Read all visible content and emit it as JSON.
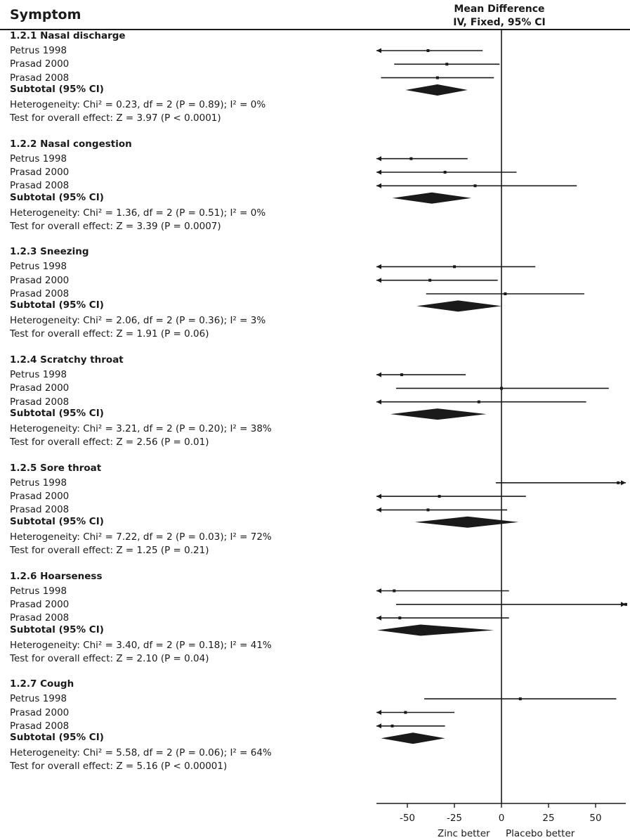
{
  "header": {
    "column_title": "Symptom",
    "md_line1": "Mean Difference",
    "md_line2": "IV, Fixed, 95% CI"
  },
  "chart_data": {
    "type": "forest",
    "effect_measure": "Mean Difference",
    "method": "IV, Fixed, 95% CI",
    "x_axis": {
      "range": [
        -66,
        66
      ],
      "ticks": [
        -50,
        -25,
        0,
        25,
        50
      ],
      "tick_labels": [
        "-50",
        "-25",
        "0",
        "25",
        "50"
      ]
    },
    "favours_left": "Zinc better",
    "favours_right": "Placebo better",
    "groups": [
      {
        "title": "1.2.1 Nasal discharge",
        "studies": [
          {
            "name": "Petrus 1998",
            "md": -39,
            "lo": -100,
            "hi": -10
          },
          {
            "name": "Prasad 2000",
            "md": -29,
            "lo": -57,
            "hi": -1
          },
          {
            "name": "Prasad 2008",
            "md": -34,
            "lo": -64,
            "hi": -4
          }
        ],
        "subtotal_label": "Subtotal (95% CI)",
        "subtotal": {
          "md": -34,
          "lo": -51,
          "hi": -18
        },
        "heterogeneity": "Heterogeneity: Chi² = 0.23, df = 2 (P = 0.89); I² = 0%",
        "overall": "Test for overall effect: Z = 3.97 (P < 0.0001)"
      },
      {
        "title": "1.2.2 Nasal congestion",
        "studies": [
          {
            "name": "Petrus 1998",
            "md": -48,
            "lo": -100,
            "hi": -18
          },
          {
            "name": "Prasad 2000",
            "md": -30,
            "lo": -100,
            "hi": 8
          },
          {
            "name": "Prasad 2008",
            "md": -14,
            "lo": -100,
            "hi": 40
          }
        ],
        "subtotal_label": "Subtotal (95% CI)",
        "subtotal": {
          "md": -37,
          "lo": -58,
          "hi": -16
        },
        "heterogeneity": "Heterogeneity: Chi² = 1.36, df = 2 (P = 0.51); I² = 0%",
        "overall": "Test for overall effect: Z = 3.39 (P = 0.0007)"
      },
      {
        "title": "1.2.3 Sneezing",
        "studies": [
          {
            "name": "Petrus 1998",
            "md": -25,
            "lo": -100,
            "hi": 18
          },
          {
            "name": "Prasad 2000",
            "md": -38,
            "lo": -100,
            "hi": -2
          },
          {
            "name": "Prasad 2008",
            "md": 2,
            "lo": -40,
            "hi": 44
          }
        ],
        "subtotal_label": "Subtotal (95% CI)",
        "subtotal": {
          "md": -23,
          "lo": -45,
          "hi": 0
        },
        "heterogeneity": "Heterogeneity: Chi² = 2.06, df = 2 (P = 0.36); I² = 3%",
        "overall": "Test for overall effect: Z = 1.91 (P = 0.06)"
      },
      {
        "title": "1.2.4 Scratchy throat",
        "studies": [
          {
            "name": "Petrus 1998",
            "md": -53,
            "lo": -100,
            "hi": -19
          },
          {
            "name": "Prasad 2000",
            "md": 0,
            "lo": -56,
            "hi": 57
          },
          {
            "name": "Prasad 2008",
            "md": -12,
            "lo": -100,
            "hi": 45
          }
        ],
        "subtotal_label": "Subtotal (95% CI)",
        "subtotal": {
          "md": -34,
          "lo": -59,
          "hi": -8
        },
        "heterogeneity": "Heterogeneity: Chi² = 3.21, df = 2 (P = 0.20); I² = 38%",
        "overall": "Test for overall effect: Z = 2.56 (P = 0.01)"
      },
      {
        "title": "1.2.5 Sore throat",
        "studies": [
          {
            "name": "Petrus 1998",
            "md": 62,
            "lo": -3,
            "hi": 120
          },
          {
            "name": "Prasad 2000",
            "md": -33,
            "lo": -100,
            "hi": 13
          },
          {
            "name": "Prasad 2008",
            "md": -39,
            "lo": -100,
            "hi": 3
          }
        ],
        "subtotal_label": "Subtotal (95% CI)",
        "subtotal": {
          "md": -18,
          "lo": -46,
          "hi": 9
        },
        "heterogeneity": "Heterogeneity: Chi² = 7.22, df = 2 (P = 0.03); I² = 72%",
        "overall": "Test for overall effect: Z = 1.25 (P = 0.21)"
      },
      {
        "title": "1.2.6 Hoarseness",
        "studies": [
          {
            "name": "Petrus 1998",
            "md": -57,
            "lo": -100,
            "hi": 4
          },
          {
            "name": "Prasad 2000",
            "md": 70,
            "lo": -56,
            "hi": 120
          },
          {
            "name": "Prasad 2008",
            "md": -54,
            "lo": -100,
            "hi": 4
          }
        ],
        "subtotal_label": "Subtotal (95% CI)",
        "subtotal": {
          "md": -43,
          "lo": -66,
          "hi": -4
        },
        "heterogeneity": "Heterogeneity: Chi² = 3.40, df = 2 (P = 0.18); I² = 41%",
        "overall": "Test for overall effect: Z = 2.10 (P = 0.04)"
      },
      {
        "title": "1.2.7 Cough",
        "studies": [
          {
            "name": "Petrus 1998",
            "md": 10,
            "lo": -41,
            "hi": 61
          },
          {
            "name": "Prasad 2000",
            "md": -51,
            "lo": -100,
            "hi": -25
          },
          {
            "name": "Prasad 2008",
            "md": -58,
            "lo": -100,
            "hi": -30
          }
        ],
        "subtotal_label": "Subtotal (95% CI)",
        "subtotal": {
          "md": -47,
          "lo": -64,
          "hi": -30
        },
        "heterogeneity": "Heterogeneity: Chi² = 5.58, df = 2 (P = 0.06); I² = 64%",
        "overall": "Test for overall effect: Z = 5.16 (P < 0.00001)"
      }
    ]
  }
}
